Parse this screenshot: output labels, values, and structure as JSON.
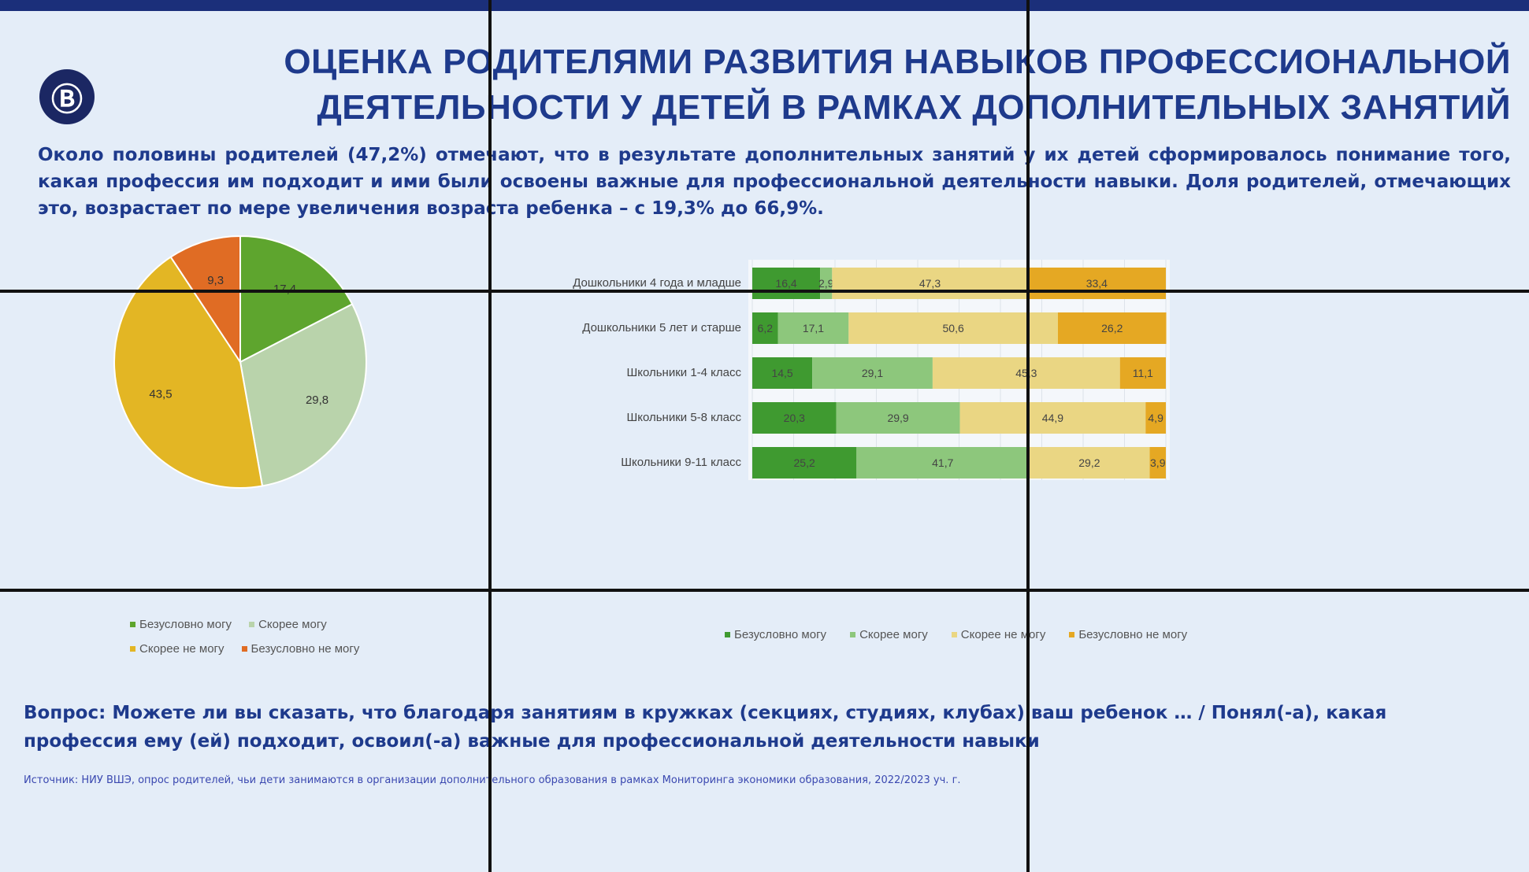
{
  "logo_text": "ВШЭ",
  "title": "ОЦЕНКА РОДИТЕЛЯМИ РАЗВИТИЯ НАВЫКОВ ПРОФЕССИОНАЛЬНОЙ ДЕЯТЕЛЬНОСТИ У ДЕТЕЙ В РАМКАХ ДОПОЛНИТЕЛЬНЫХ ЗАНЯТИЙ",
  "lead": "Около половины родителей (47,2%) отмечают, что в результате дополнительных занятий у их детей сформировалось понимание того, какая профессия им подходит и ими были освоены важные для профессиональной деятельности навыки. Доля родителей, отмечающих это, возрастает по мере увеличения возраста ребенка – с 19,3% до 66,9%.",
  "question": "Вопрос: Можете ли вы сказать, что благодаря занятиям в кружках (секциях, студиях, клубах) ваш ребенок … / Понял(-а), какая профессия ему (ей) подходит, освоил(-а) важные для профессиональной деятельности навыки",
  "source": "Источник: НИУ ВШЭ, опрос родителей, чьи дети занимаются в организации дополнительного образования в рамках Мониторинга экономики образования, 2022/2023 уч. г.",
  "chart_data": [
    {
      "type": "pie",
      "categories": [
        "Безусловно могу",
        "Скорее могу",
        "Скорее не могу",
        "Безусловно не могу"
      ],
      "values": [
        17.4,
        29.8,
        43.5,
        9.3
      ],
      "labels": [
        "17,4",
        "29,8",
        "43,5",
        "9,3"
      ],
      "colors": [
        "#5ea52e",
        "#b9d3ab",
        "#e3b624",
        "#e06c24"
      ],
      "legend": "bottom"
    },
    {
      "type": "bar",
      "orientation": "horizontal",
      "stacked": true,
      "categories": [
        "Дошкольники 4 года и младше",
        "Дошкольники 5 лет и старше",
        "Школьники 1-4 класс",
        "Школьники 5-8 класс",
        "Школьники 9-11 класс"
      ],
      "series": [
        {
          "name": "Безусловно могу",
          "values": [
            16.4,
            6.2,
            14.5,
            20.3,
            25.2
          ],
          "labels": [
            "16,4",
            "6,2",
            "14,5",
            "20,3",
            "25,2"
          ],
          "color": "#3f9a30"
        },
        {
          "name": "Скорее могу",
          "values": [
            2.9,
            17.1,
            29.1,
            29.9,
            41.7
          ],
          "labels": [
            "2,9",
            "17,1",
            "29,1",
            "29,9",
            "41,7"
          ],
          "color": "#8dc77c"
        },
        {
          "name": "Скорее не могу",
          "values": [
            47.3,
            50.6,
            45.3,
            44.9,
            29.2
          ],
          "labels": [
            "47,3",
            "50,6",
            "45,3",
            "44,9",
            "29,2"
          ],
          "color": "#ead683"
        },
        {
          "name": "Безусловно не могу",
          "values": [
            33.4,
            26.2,
            11.1,
            4.9,
            3.9
          ],
          "labels": [
            "33,4",
            "26,2",
            "11,1",
            "4,9",
            "3,9"
          ],
          "color": "#e5a823"
        }
      ],
      "xlim": [
        0,
        100
      ],
      "grid": true,
      "legend": "bottom"
    }
  ]
}
